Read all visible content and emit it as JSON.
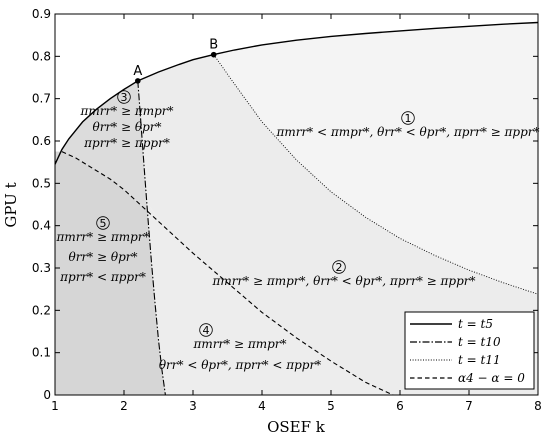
{
  "chart_data": {
    "type": "line",
    "xlabel": "OSEF k",
    "ylabel": "GPU t",
    "xlim": [
      1,
      8
    ],
    "ylim": [
      0,
      0.9
    ],
    "xticks": [
      1,
      2,
      3,
      4,
      5,
      6,
      7,
      8
    ],
    "yticks": [
      0,
      0.1,
      0.2,
      0.3,
      0.4,
      0.5,
      0.6,
      0.7,
      0.8,
      0.9
    ],
    "grid": false,
    "legend_position": "bottom-right",
    "series": [
      {
        "name": "t = t5",
        "style": "solid",
        "x": [
          1,
          1.1,
          1.2,
          1.4,
          1.6,
          1.8,
          2.0,
          2.2,
          2.5,
          2.8,
          3.0,
          3.3,
          3.6,
          4.0,
          4.5,
          5.0,
          5.5,
          6.0,
          6.5,
          7.0,
          7.5,
          8.0
        ],
        "y": [
          0.545,
          0.58,
          0.605,
          0.645,
          0.675,
          0.7,
          0.722,
          0.742,
          0.763,
          0.781,
          0.792,
          0.804,
          0.815,
          0.827,
          0.838,
          0.847,
          0.854,
          0.86,
          0.866,
          0.871,
          0.876,
          0.88
        ]
      },
      {
        "name": "t = t10",
        "style": "dashdot",
        "x": [
          2.2,
          2.25,
          2.3,
          2.35,
          2.4,
          2.45,
          2.5,
          2.55,
          2.6
        ],
        "y": [
          0.742,
          0.63,
          0.52,
          0.41,
          0.31,
          0.215,
          0.13,
          0.06,
          0.0
        ]
      },
      {
        "name": "t = t11",
        "style": "dotted",
        "x": [
          3.3,
          3.6,
          4.0,
          4.5,
          5.0,
          5.5,
          6.0,
          6.5,
          7.0,
          7.5,
          8.0
        ],
        "y": [
          0.804,
          0.735,
          0.645,
          0.555,
          0.48,
          0.42,
          0.37,
          0.33,
          0.295,
          0.265,
          0.238
        ]
      },
      {
        "name": "α4 − α = 0",
        "style": "dashed",
        "x": [
          1.1,
          1.3,
          1.5,
          1.8,
          2.0,
          2.3,
          2.6,
          3.0,
          3.5,
          4.0,
          4.5,
          5.0,
          5.5,
          5.9
        ],
        "y": [
          0.575,
          0.56,
          0.54,
          0.51,
          0.485,
          0.44,
          0.395,
          0.335,
          0.265,
          0.195,
          0.135,
          0.08,
          0.03,
          0.0
        ]
      }
    ],
    "points": [
      {
        "label": "A",
        "x": 2.2,
        "y": 0.742
      },
      {
        "label": "B",
        "x": 3.3,
        "y": 0.804
      }
    ],
    "regions": [
      {
        "num": "1",
        "lines": [
          "πmrr* < πmpr*, θrr* < θpr*, πprr* ≥ πppr*"
        ]
      },
      {
        "num": "2",
        "lines": [
          "πmrr* ≥ πmpr*, θrr* < θpr*, πprr* ≥ πppr*"
        ]
      },
      {
        "num": "3",
        "lines": [
          "πmrr* ≥ πmpr*",
          "θrr* ≥ θpr*",
          "πprr* ≥ πppr*"
        ]
      },
      {
        "num": "4",
        "lines": [
          "πmrr* ≥ πmpr*",
          "θrr* < θpr*, πprr* < πppr*"
        ]
      },
      {
        "num": "5",
        "lines": [
          "πmrr* ≥ πmpr*",
          "θrr* ≥ θpr*",
          "πprr* < πppr*"
        ]
      }
    ],
    "colors": {
      "region1": "#f4f4f4",
      "region2": "#ececec",
      "region3": "#dcdcdc",
      "region4": "#ededed",
      "region5": "#d6d6d6",
      "lines": "#000000"
    }
  }
}
